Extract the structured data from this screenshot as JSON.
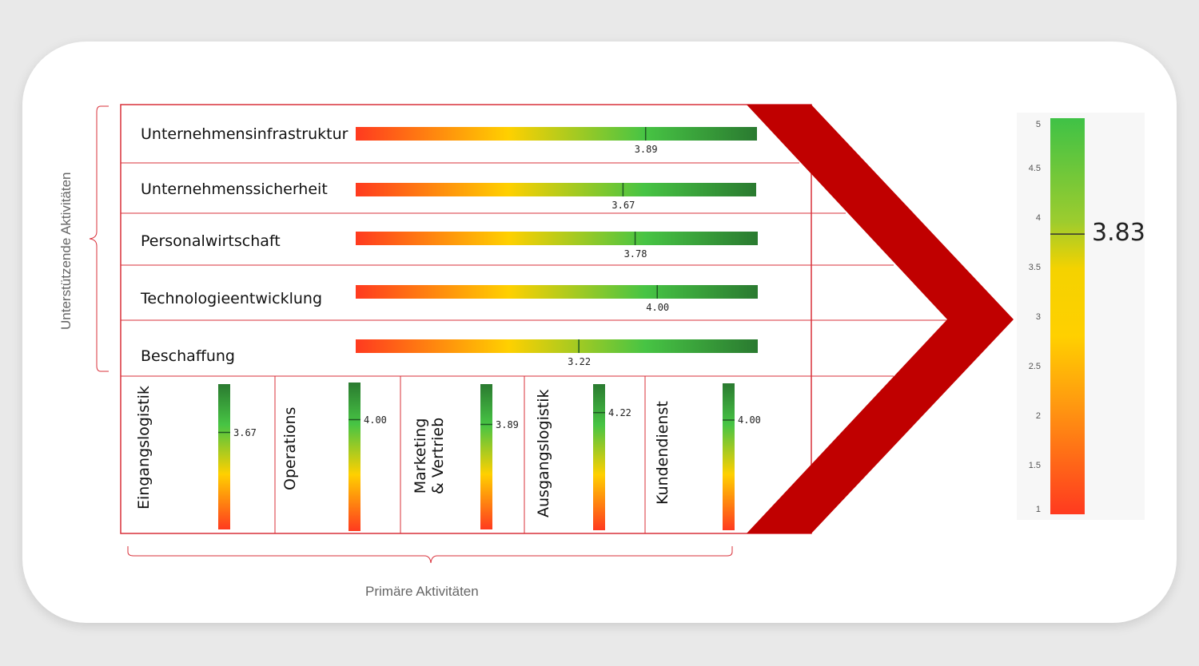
{
  "support_axis_label": "Unterstützende Aktivitäten",
  "primary_axis_label": "Primäre Aktivitäten",
  "overall": {
    "value": 3.83,
    "value_label": "3.83",
    "scale_ticks": [
      "5",
      "4.5",
      "4",
      "3.5",
      "3",
      "2.5",
      "2",
      "1.5",
      "1"
    ]
  },
  "colors": {
    "arrow": "#c00000",
    "border": "#d9303a",
    "gradient_low": "#ff3a1f",
    "gradient_mid": "#ffd000",
    "gradient_high": "#2a7a30"
  },
  "chart_data": [
    {
      "type": "bar",
      "categories": [
        "Unternehmensinfrastruktur",
        "Unternehmenssicherheit",
        "Personalwirtschaft",
        "Technologieentwicklung",
        "Beschaffung"
      ],
      "values": [
        3.89,
        3.67,
        3.78,
        4.0,
        3.22
      ],
      "value_labels": [
        "3.89",
        "3.67",
        "3.78",
        "4.00",
        "3.22"
      ],
      "orientation": "horizontal"
    },
    {
      "type": "bar",
      "categories": [
        "Eingangslogistik",
        "Operations",
        "Marketing\n& Vertrieb",
        "Ausgangslogistik",
        "Kundendienst"
      ],
      "values": [
        3.67,
        4.0,
        3.89,
        4.22,
        4.0
      ],
      "value_labels": [
        "3.67",
        "4.00",
        "3.89",
        "4.22",
        "4.00"
      ],
      "orientation": "vertical"
    },
    {
      "type": "bar",
      "categories": [
        ""
      ],
      "values": [
        3.83
      ],
      "ylim": [
        1,
        5
      ],
      "orientation": "vertical"
    }
  ]
}
